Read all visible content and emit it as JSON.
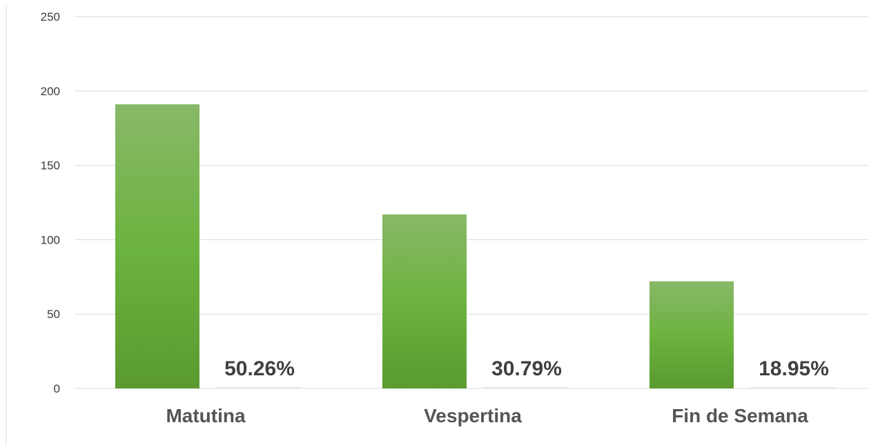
{
  "chart_data": {
    "type": "bar",
    "categories": [
      "Matutina",
      "Vespertina",
      "Fin de Semana"
    ],
    "series": [
      {
        "values": [
          191,
          117,
          72
        ]
      }
    ],
    "data_labels": [
      "50.26%",
      "30.79%",
      "18.95%"
    ],
    "ylim": [
      0,
      250
    ],
    "yticks": [
      0,
      50,
      100,
      150,
      200,
      250
    ],
    "grid": true,
    "legend": "none",
    "colors": {
      "bar_top": "#88b868",
      "bar_mid": "#6db33f",
      "bar_bottom": "#5a9a30"
    }
  }
}
